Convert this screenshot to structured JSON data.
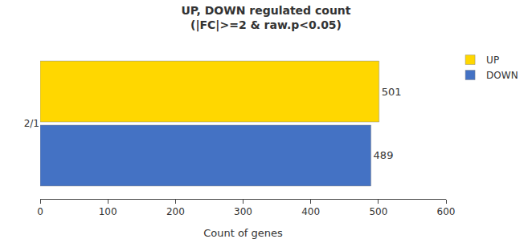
{
  "chart_data": {
    "type": "bar",
    "orientation": "horizontal",
    "title": "UP, DOWN regulated count",
    "subtitle": "(|FC|>=2 & raw.p<0.05)",
    "categories": [
      "2/1"
    ],
    "series": [
      {
        "name": "UP",
        "color": "#FFD700",
        "values": [
          501
        ]
      },
      {
        "name": "DOWN",
        "color": "#4472C4",
        "values": [
          489
        ]
      }
    ],
    "xlabel": "Count of genes",
    "xlim": [
      0,
      600
    ],
    "xticks": [
      0,
      100,
      200,
      300,
      400,
      500,
      600
    ],
    "grid": false,
    "legend": "upper right",
    "data_labels": true
  }
}
